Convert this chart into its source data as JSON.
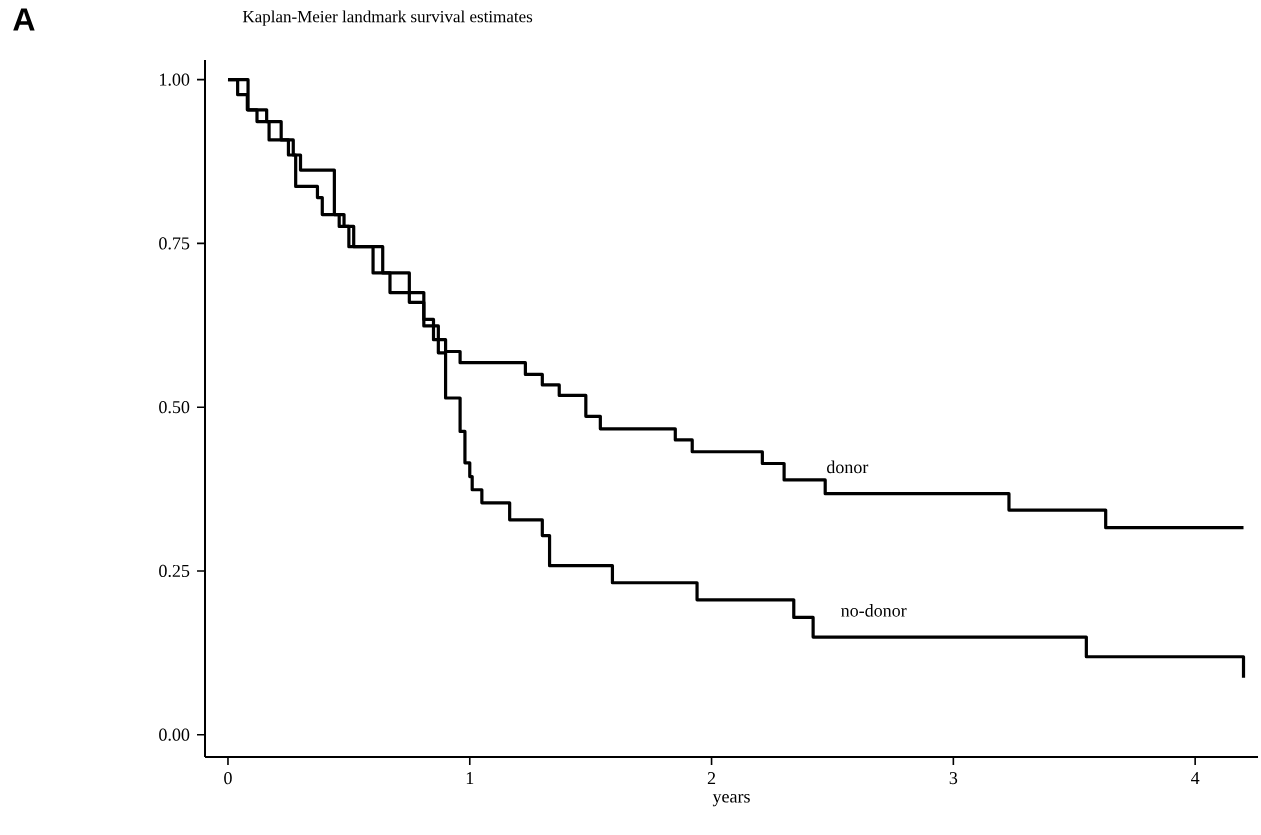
{
  "chart_data": {
    "type": "step",
    "title": "Kaplan-Meier landmark survival estimates",
    "xlabel": "years",
    "annotations": [
      "A"
    ],
    "xlim": [
      -0.095,
      4.26
    ],
    "ylim": [
      -0.034,
      1.03
    ],
    "xticks": [
      0,
      1,
      2,
      3,
      4
    ],
    "yticks": [
      {
        "value": 0,
        "label": "0.00"
      },
      {
        "value": 0.25,
        "label": "0.25"
      },
      {
        "value": 0.5,
        "label": "0.50"
      },
      {
        "value": 0.75,
        "label": "0.75"
      },
      {
        "value": 1,
        "label": "1.00"
      }
    ],
    "grid": false,
    "legend": false,
    "marker": "none",
    "line_style": "solid",
    "series": [
      {
        "name": "donor",
        "color": "#000000",
        "x": [
          0,
          0.083,
          0.16,
          0.22,
          0.27,
          0.3,
          0.44,
          0.48,
          0.52,
          0.64,
          0.75,
          0.81,
          0.85,
          0.9,
          0.96,
          1.23,
          1.3,
          1.37,
          1.48,
          1.54,
          1.85,
          1.92,
          2.21,
          2.3,
          2.47,
          3.23,
          3.63,
          4.2
        ],
        "values": [
          1.0,
          0.954,
          0.936,
          0.908,
          0.885,
          0.862,
          0.794,
          0.776,
          0.745,
          0.705,
          0.675,
          0.634,
          0.603,
          0.585,
          0.568,
          0.55,
          0.534,
          0.518,
          0.486,
          0.467,
          0.45,
          0.432,
          0.414,
          0.389,
          0.368,
          0.343,
          0.316,
          0.316
        ]
      },
      {
        "name": "no-donor",
        "color": "#000000",
        "x": [
          0,
          0.04,
          0.08,
          0.12,
          0.17,
          0.25,
          0.28,
          0.37,
          0.39,
          0.46,
          0.5,
          0.6,
          0.67,
          0.75,
          0.81,
          0.87,
          0.9,
          0.96,
          0.98,
          1.0,
          1.01,
          1.05,
          1.165,
          1.3,
          1.33,
          1.59,
          1.94,
          2.34,
          2.42,
          3.55,
          4.2
        ],
        "values": [
          1.0,
          0.977,
          0.954,
          0.936,
          0.908,
          0.885,
          0.837,
          0.82,
          0.794,
          0.776,
          0.745,
          0.705,
          0.675,
          0.66,
          0.624,
          0.583,
          0.514,
          0.463,
          0.415,
          0.394,
          0.374,
          0.354,
          0.328,
          0.304,
          0.258,
          0.232,
          0.206,
          0.179,
          0.149,
          0.119,
          0.087
        ]
      }
    ]
  }
}
